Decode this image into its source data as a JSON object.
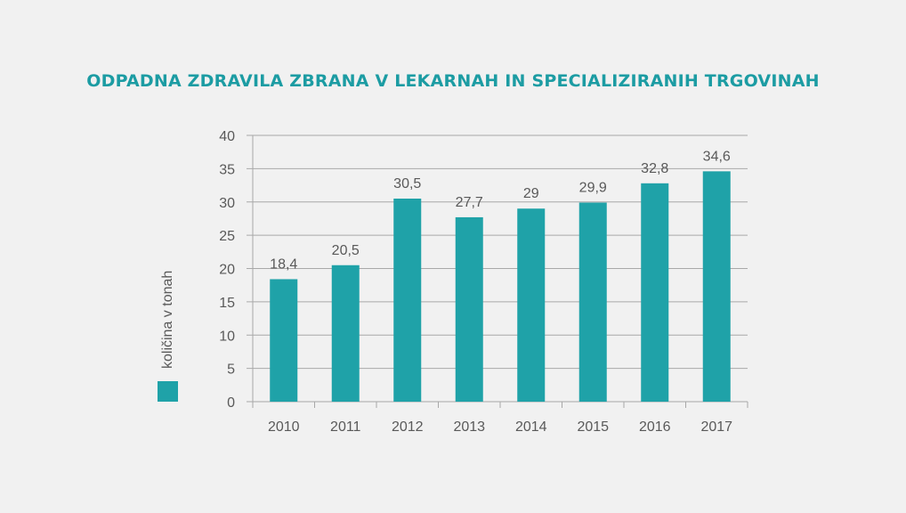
{
  "chart_data": {
    "type": "bar",
    "title": "ODPADNA ZDRAVILA ZBRANA V LEKARNAH IN SPECIALIZIRANIH TRGOVINAH",
    "xlabel": "",
    "ylabel": "",
    "categories": [
      "2010",
      "2011",
      "2012",
      "2013",
      "2014",
      "2015",
      "2016",
      "2017"
    ],
    "series": [
      {
        "name": "količina v tonah",
        "values": [
          18.4,
          20.5,
          30.5,
          27.7,
          29,
          29.9,
          32.8,
          34.6
        ],
        "labels": [
          "18,4",
          "20,5",
          "30,5",
          "27,7",
          "29",
          "29,9",
          "32,8",
          "34,6"
        ]
      }
    ],
    "ylim": [
      0,
      40
    ],
    "yticks": [
      0,
      5,
      10,
      15,
      20,
      25,
      30,
      35,
      40
    ],
    "grid": true,
    "legend_position": "left, vertical",
    "colors": {
      "bar": "#1fa2a8",
      "title": "#1c9ca3",
      "grid": "#a8a8a8",
      "text": "#595959",
      "background": "#f1f1f1"
    }
  }
}
